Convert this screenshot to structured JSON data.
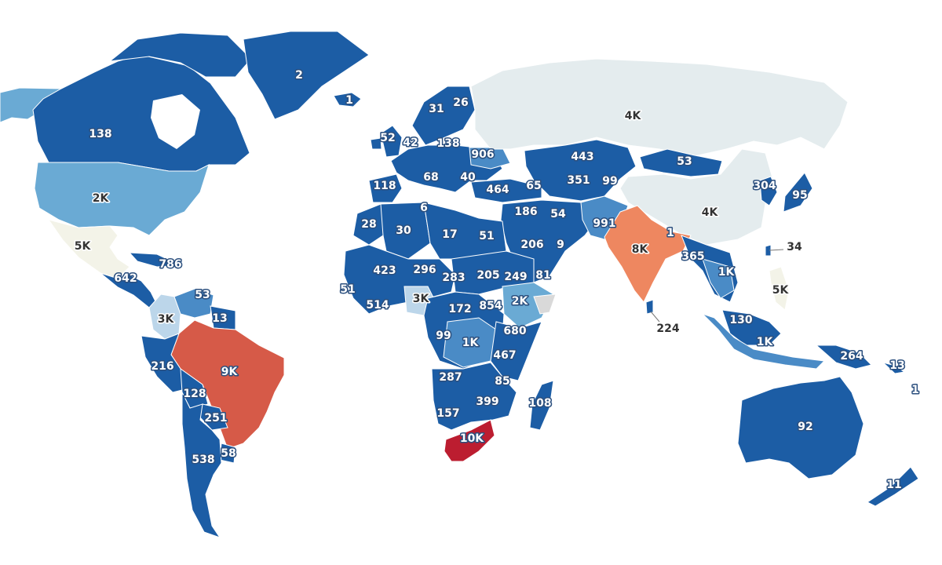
{
  "map": {
    "palette": {
      "very_low": "#1c5da5",
      "low": "#4a8bc6",
      "low_mid": "#6aaad4",
      "mid_low": "#bcd6ea",
      "mid": "#d9e6ef",
      "neutral": "#e4ecee",
      "neutral_warm": "#f3f3e8",
      "no_data": "#d9d9d9",
      "high": "#ee8760",
      "higher": "#d65a48",
      "highest": "#bc1d30"
    },
    "regions": [
      {
        "name": "Greenland",
        "label": "2"
      },
      {
        "name": "Iceland",
        "label": "1"
      },
      {
        "name": "Canada",
        "label": "138"
      },
      {
        "name": "United States",
        "label": "2K"
      },
      {
        "name": "Mexico",
        "label": "5K"
      },
      {
        "name": "Cuba",
        "label": "786"
      },
      {
        "name": "Central America",
        "label": "642"
      },
      {
        "name": "Venezuela",
        "label": "53"
      },
      {
        "name": "Colombia",
        "label": "3K"
      },
      {
        "name": "Guyana",
        "label": "13"
      },
      {
        "name": "Brazil",
        "label": "9K"
      },
      {
        "name": "Peru",
        "label": "216"
      },
      {
        "name": "Bolivia",
        "label": "128"
      },
      {
        "name": "Paraguay",
        "label": "251"
      },
      {
        "name": "Argentina",
        "label": "538"
      },
      {
        "name": "Uruguay",
        "label": "58"
      },
      {
        "name": "Norway",
        "label": "31"
      },
      {
        "name": "Finland",
        "label": "26"
      },
      {
        "name": "Ireland",
        "label": "52"
      },
      {
        "name": "United Kingdom",
        "label": "42"
      },
      {
        "name": "Poland",
        "label": "138"
      },
      {
        "name": "Ukraine",
        "label": "906"
      },
      {
        "name": "Spain",
        "label": "118"
      },
      {
        "name": "Italy",
        "label": "68"
      },
      {
        "name": "Greece",
        "label": "40"
      },
      {
        "name": "Turkey",
        "label": "464"
      },
      {
        "name": "Georgia",
        "label": "65"
      },
      {
        "name": "Russia",
        "label": "4K"
      },
      {
        "name": "Kazakhstan",
        "label": "443"
      },
      {
        "name": "Mongolia",
        "label": "53"
      },
      {
        "name": "Uzbekistan",
        "label": "351"
      },
      {
        "name": "Kyrgyzstan",
        "label": "99"
      },
      {
        "name": "China",
        "label": "4K"
      },
      {
        "name": "South Korea",
        "label": "304"
      },
      {
        "name": "Japan",
        "label": "95"
      },
      {
        "name": "Iraq",
        "label": "186"
      },
      {
        "name": "Iran",
        "label": "54"
      },
      {
        "name": "Pakistan",
        "label": "991"
      },
      {
        "name": "India",
        "label": "8K"
      },
      {
        "name": "Nepal",
        "label": "1"
      },
      {
        "name": "Saudi Arabia",
        "label": "206"
      },
      {
        "name": "UAE",
        "label": "9"
      },
      {
        "name": "Yemen",
        "label": "81"
      },
      {
        "name": "Myanmar",
        "label": "365"
      },
      {
        "name": "Thailand",
        "label": "1K"
      },
      {
        "name": "Taiwan",
        "label": "34"
      },
      {
        "name": "Philippines",
        "label": "5K"
      },
      {
        "name": "Sri Lanka",
        "label": "224"
      },
      {
        "name": "Malaysia",
        "label": "130"
      },
      {
        "name": "Indonesia",
        "label": "1K"
      },
      {
        "name": "Papua New Guinea",
        "label": "264"
      },
      {
        "name": "Solomon Islands",
        "label": "13"
      },
      {
        "name": "Fiji",
        "label": "1"
      },
      {
        "name": "Australia",
        "label": "92"
      },
      {
        "name": "New Zealand",
        "label": "11"
      },
      {
        "name": "Morocco",
        "label": "28"
      },
      {
        "name": "Algeria",
        "label": "30"
      },
      {
        "name": "Tunisia",
        "label": "6"
      },
      {
        "name": "Libya",
        "label": "17"
      },
      {
        "name": "Egypt",
        "label": "51"
      },
      {
        "name": "Mali",
        "label": "423"
      },
      {
        "name": "Niger",
        "label": "296"
      },
      {
        "name": "Chad",
        "label": "283"
      },
      {
        "name": "Sudan",
        "label": "205"
      },
      {
        "name": "Eritrea",
        "label": "249"
      },
      {
        "name": "Senegal",
        "label": "51"
      },
      {
        "name": "Ivory Coast",
        "label": "514"
      },
      {
        "name": "Nigeria",
        "label": "3K"
      },
      {
        "name": "Cameroon",
        "label": "172"
      },
      {
        "name": "South Sudan",
        "label": "854"
      },
      {
        "name": "Ethiopia",
        "label": "2K"
      },
      {
        "name": "Gabon",
        "label": "99"
      },
      {
        "name": "DR Congo",
        "label": "1K"
      },
      {
        "name": "Kenya",
        "label": "680"
      },
      {
        "name": "Tanzania",
        "label": "467"
      },
      {
        "name": "Angola",
        "label": "287"
      },
      {
        "name": "Malawi",
        "label": "85"
      },
      {
        "name": "Zimbabwe",
        "label": "399"
      },
      {
        "name": "Namibia",
        "label": "157"
      },
      {
        "name": "South Africa",
        "label": "10K"
      },
      {
        "name": "Madagascar",
        "label": "108"
      }
    ]
  }
}
